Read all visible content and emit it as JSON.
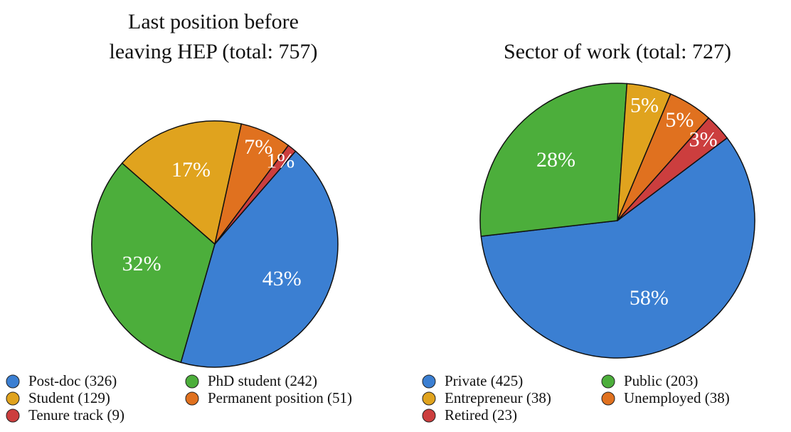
{
  "chart_data": [
    {
      "type": "pie",
      "title": [
        "Last position before",
        "leaving HEP (total: 757)"
      ],
      "categories": [
        "Post-doc (326)",
        "PhD student (242)",
        "Student (129)",
        "Permanent position (51)",
        "Tenure track (9)"
      ],
      "values": [
        326,
        242,
        129,
        51,
        9
      ],
      "value_labels": [
        "43%",
        "32%",
        "17%",
        "7%",
        "1%"
      ],
      "colors": [
        "#3b7fd2",
        "#4cae3b",
        "#e0a31e",
        "#e0711f",
        "#cc3e3e"
      ]
    },
    {
      "type": "pie",
      "title": [
        "Sector of work (total: 727)"
      ],
      "categories": [
        "Private (425)",
        "Public (203)",
        "Entrepreneur (38)",
        "Unemployed (38)",
        "Retired (23)"
      ],
      "values": [
        425,
        203,
        38,
        38,
        23
      ],
      "value_labels": [
        "58%",
        "28%",
        "5%",
        "5%",
        "3%"
      ],
      "colors": [
        "#3b7fd2",
        "#4cae3b",
        "#e0a31e",
        "#e0711f",
        "#cc3e3e"
      ]
    }
  ]
}
